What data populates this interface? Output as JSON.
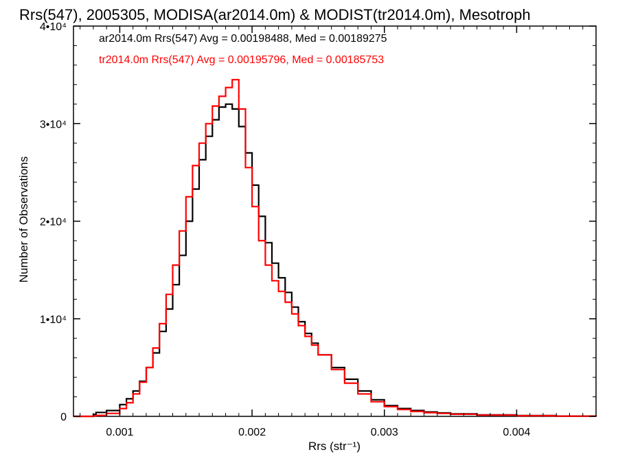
{
  "chart_data": {
    "type": "line",
    "title": "Rrs(547), 2005305, MODISA(ar2014.0m) & MODIST(tr2014.0m), Mesotroph",
    "xlabel": "Rrs (str⁻¹)",
    "ylabel": "Number of Observations",
    "xlim": [
      0.00065,
      0.0046
    ],
    "ylim": [
      0,
      40000
    ],
    "x_ticks": [
      {
        "value": 0.001,
        "label": "0.001"
      },
      {
        "value": 0.002,
        "label": "0.002"
      },
      {
        "value": 0.003,
        "label": "0.003"
      },
      {
        "value": 0.004,
        "label": "0.004"
      }
    ],
    "y_ticks": [
      {
        "value": 0,
        "label": "0"
      },
      {
        "value": 10000,
        "label": "1•10⁴"
      },
      {
        "value": 20000,
        "label": "2•10⁴"
      },
      {
        "value": 30000,
        "label": "3•10⁴"
      },
      {
        "value": 40000,
        "label": "4•10⁴"
      }
    ],
    "grid": false,
    "step": true,
    "annotations": [
      {
        "text": "ar2014.0m Rrs(547) Avg = 0.00198488, Med = 0.00189275",
        "color": "#000000"
      },
      {
        "text": "tr2014.0m Rrs(547) Avg = 0.00195796, Med = 0.00185753",
        "color": "#ff0000"
      }
    ],
    "series": [
      {
        "color": "#000000",
        "x": [
          0.00065,
          0.0007,
          0.00075,
          0.0008,
          0.00082,
          0.0009,
          0.001,
          0.00105,
          0.0011,
          0.00115,
          0.0012,
          0.00125,
          0.0013,
          0.00135,
          0.0014,
          0.00145,
          0.0015,
          0.00155,
          0.0016,
          0.00165,
          0.0017,
          0.00175,
          0.0018,
          0.00185,
          0.0019,
          0.00195,
          0.002,
          0.00205,
          0.0021,
          0.00215,
          0.0022,
          0.00225,
          0.0023,
          0.00235,
          0.0024,
          0.00245,
          0.0025,
          0.0026,
          0.0027,
          0.0028,
          0.0029,
          0.003,
          0.0031,
          0.0032,
          0.0033,
          0.0034,
          0.0035,
          0.0037,
          0.004,
          0.0043,
          0.0046
        ],
        "y": [
          0,
          0,
          0,
          200,
          400,
          600,
          1200,
          1800,
          2600,
          3600,
          5000,
          6500,
          8700,
          11000,
          13500,
          16500,
          20000,
          23300,
          26300,
          28700,
          30400,
          31700,
          32000,
          31500,
          29700,
          27000,
          23700,
          20500,
          17800,
          15700,
          14200,
          12700,
          11200,
          9700,
          8500,
          7500,
          6300,
          5000,
          3800,
          2600,
          1700,
          1100,
          800,
          600,
          450,
          350,
          260,
          150,
          80,
          30,
          0
        ]
      },
      {
        "color": "#ff0000",
        "x": [
          0.00065,
          0.0007,
          0.00075,
          0.0008,
          0.00082,
          0.0009,
          0.001,
          0.00105,
          0.0011,
          0.00115,
          0.0012,
          0.00125,
          0.0013,
          0.00135,
          0.0014,
          0.00145,
          0.0015,
          0.00155,
          0.0016,
          0.00165,
          0.0017,
          0.00175,
          0.0018,
          0.00185,
          0.0019,
          0.00195,
          0.002,
          0.00205,
          0.0021,
          0.00215,
          0.0022,
          0.00225,
          0.0023,
          0.00235,
          0.0024,
          0.00245,
          0.0025,
          0.0026,
          0.0027,
          0.0028,
          0.0029,
          0.003,
          0.0031,
          0.0032,
          0.0033,
          0.0034,
          0.0035,
          0.0037,
          0.004,
          0.0043,
          0.0046
        ],
        "y": [
          0,
          0,
          0,
          50,
          100,
          300,
          800,
          1400,
          2300,
          3500,
          5000,
          7000,
          9500,
          12500,
          15500,
          19000,
          22500,
          25700,
          28000,
          30000,
          31800,
          32800,
          33700,
          34500,
          31500,
          25500,
          21500,
          18000,
          15500,
          13900,
          12800,
          11700,
          10500,
          9300,
          8200,
          7300,
          6300,
          4800,
          3400,
          2300,
          1500,
          1000,
          700,
          500,
          380,
          300,
          220,
          130,
          60,
          20,
          0
        ]
      }
    ]
  }
}
